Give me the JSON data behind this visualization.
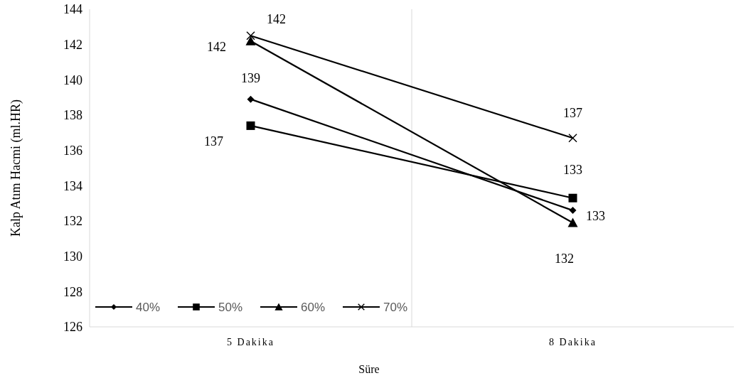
{
  "chart_data": {
    "type": "line",
    "xlabel": "Süre",
    "ylabel": "Kalp Atım Hacmi (ml.HR)",
    "categories": [
      "5 Dakika",
      "8 Dakika"
    ],
    "ylim": [
      126,
      144
    ],
    "yticks": [
      126,
      128,
      130,
      132,
      134,
      136,
      138,
      140,
      142,
      144
    ],
    "grid": "x",
    "legend": "bottom left",
    "series": [
      {
        "name": "40%",
        "color": "#000000",
        "marker": "diamond",
        "values": [
          138.9,
          132.6
        ],
        "value_labels": [
          "139",
          "133"
        ]
      },
      {
        "name": "50%",
        "color": "#000000",
        "marker": "square",
        "values": [
          137.4,
          133.3
        ],
        "value_labels": [
          "137",
          "133"
        ]
      },
      {
        "name": "60%",
        "color": "#000000",
        "marker": "triangle",
        "values": [
          142.2,
          131.9
        ],
        "value_labels": [
          "142",
          "132"
        ]
      },
      {
        "name": "70%",
        "color": "#000000",
        "marker": "cross",
        "values": [
          142.5,
          136.7
        ],
        "value_labels": [
          "142",
          "137"
        ]
      }
    ]
  }
}
